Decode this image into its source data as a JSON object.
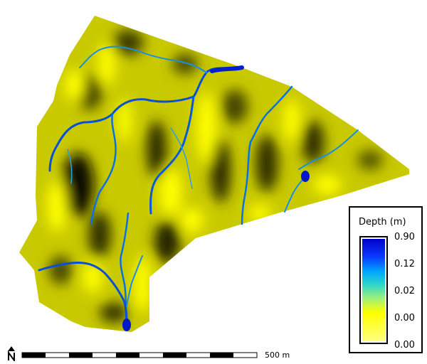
{
  "legend": {
    "title": "Depth (m)",
    "labels": [
      "0.90",
      "0.12",
      "0.02",
      "0.00",
      "0.00"
    ],
    "colors": [
      "#0000cc",
      "#00a6ff",
      "#47e6a6",
      "#ffff00",
      "#ffff80"
    ]
  },
  "scale_bar": {
    "label": "500 m"
  },
  "north_arrow": {
    "letter": "N"
  },
  "map": {
    "terrain_colors": [
      "#000000",
      "#6b6b00",
      "#d6d600",
      "#ffff00"
    ],
    "channel_color": "#0a5adc",
    "pool_color": "#0018c8"
  }
}
